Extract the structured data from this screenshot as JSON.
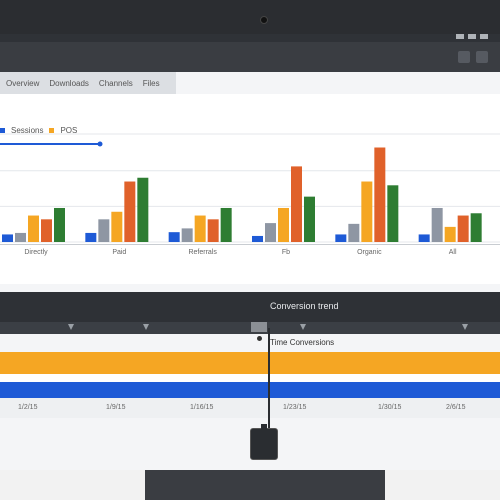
{
  "window": {
    "title": ""
  },
  "tabs": [
    {
      "label": "Overview"
    },
    {
      "label": "Downloads"
    },
    {
      "label": "Channels"
    },
    {
      "label": "Files"
    }
  ],
  "legend": [
    {
      "label": "Sessions",
      "color": "#1e5ad6"
    },
    {
      "label": "POS",
      "color": "#f5a623"
    }
  ],
  "colors": {
    "blue": "#1e5ad6",
    "gray": "#8e96a3",
    "orange": "#f5a623",
    "dark_orange": "#e0612a",
    "green": "#2e7d32",
    "red_orange": "#c0502a"
  },
  "chart_data": {
    "type": "bar",
    "categories": [
      "Directly",
      "Paid",
      "Referrals",
      "Fb",
      "Organic",
      "All"
    ],
    "series": [
      {
        "values": [
          10,
          12,
          13,
          8,
          10,
          10
        ]
      },
      {
        "values": [
          12,
          30,
          18,
          25,
          24,
          45
        ]
      },
      {
        "values": [
          35,
          40,
          35,
          45,
          80,
          20
        ]
      },
      {
        "values": [
          30,
          80,
          30,
          100,
          125,
          35
        ]
      },
      {
        "values": [
          45,
          85,
          45,
          60,
          75,
          38
        ]
      }
    ],
    "ylim": [
      0,
      150
    ]
  },
  "lower_panel": {
    "title": "Conversion trend",
    "subtitle": "Time Conversions",
    "dates": [
      "1/2/15",
      "1/9/15",
      "1/16/15",
      "1/23/15",
      "1/30/15",
      "2/6/15"
    ]
  }
}
